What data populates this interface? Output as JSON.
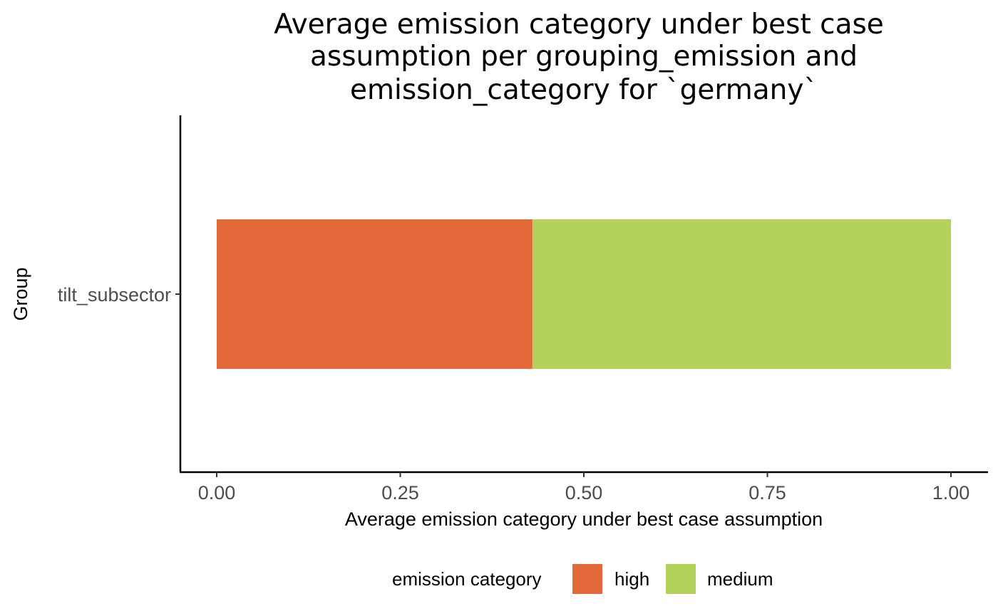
{
  "chart_data": {
    "type": "bar",
    "orientation": "horizontal",
    "stacked": true,
    "title_lines": [
      "Average emission category under best case",
      "assumption per grouping_emission and",
      "emission_category for `germany`"
    ],
    "xlabel": "Average emission category under best case assumption",
    "ylabel": "Group",
    "categories": [
      "tilt_subsector"
    ],
    "series": [
      {
        "name": "high",
        "values": [
          0.43
        ],
        "color": "#e3693b"
      },
      {
        "name": "medium",
        "values": [
          0.57
        ],
        "color": "#b3d25c"
      }
    ],
    "xlim": [
      0,
      1
    ],
    "xticks": [
      0,
      0.25,
      0.5,
      0.75,
      1
    ],
    "xtick_labels": [
      "0.00",
      "0.25",
      "0.50",
      "0.75",
      "1.00"
    ],
    "grid": false,
    "legend": {
      "title": "emission category",
      "position": "bottom"
    }
  }
}
